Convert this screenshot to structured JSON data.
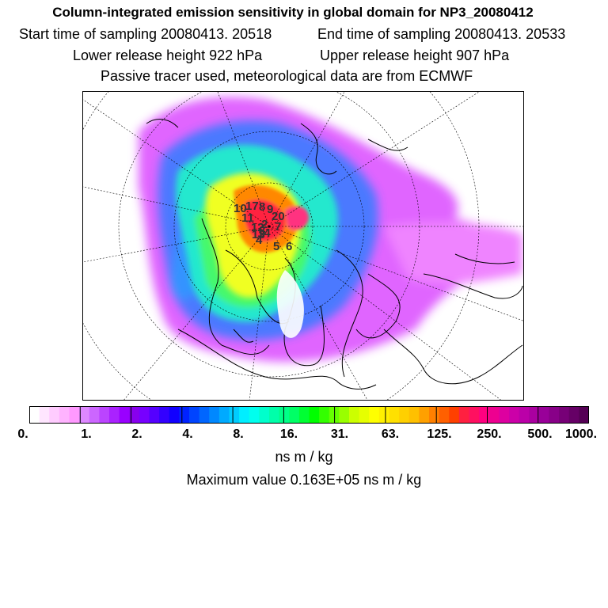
{
  "header": {
    "title": "Column-integrated emission sensitivity in global domain for NP3_20080412",
    "start_time": "Start time of sampling 20080413. 20518",
    "end_time": "End time of sampling 20080413. 20533",
    "lower_height": "Lower release height  922 hPa",
    "upper_height": "Upper release height  907 hPa",
    "tracer_note": "Passive tracer used, meteorological data are from ECMWF"
  },
  "map": {
    "projection": "polar stereographic (north pole)",
    "track_labels": [
      "10",
      "17",
      "8",
      "9",
      "20",
      "11",
      "12",
      "13",
      "14",
      "5",
      "4",
      "3",
      "2",
      "7",
      "6"
    ]
  },
  "colorbar": {
    "ticks": [
      "0.",
      "1.",
      "2.",
      "4.",
      "8.",
      "16.",
      "31.",
      "63.",
      "125.",
      "250.",
      "500.",
      "1000."
    ],
    "colors": [
      "#ffffff",
      "#ffe6ff",
      "#ffccff",
      "#ffb3ff",
      "#ff99ff",
      "#dd88ff",
      "#cc66ff",
      "#bb44ff",
      "#aa22ff",
      "#9900ff",
      "#8800ee",
      "#7700ff",
      "#5500ff",
      "#3300ff",
      "#1100ff",
      "#0022ff",
      "#0044ff",
      "#0066ff",
      "#0088ff",
      "#00aaff",
      "#00ccff",
      "#00eeff",
      "#00ffee",
      "#00ffcc",
      "#00ffaa",
      "#00ff88",
      "#00ff66",
      "#00ff33",
      "#00ff00",
      "#33ff00",
      "#66ff00",
      "#99ff00",
      "#ccff00",
      "#e6ff00",
      "#ffff00",
      "#fff000",
      "#ffe000",
      "#ffd000",
      "#ffc000",
      "#ffa000",
      "#ff8000",
      "#ff6000",
      "#ff4000",
      "#ff2040",
      "#ff1060",
      "#ff0080",
      "#ee0090",
      "#dd00a0",
      "#cc00a8",
      "#bb00a8",
      "#aa00a0",
      "#990099",
      "#880088",
      "#770077",
      "#660066",
      "#550055"
    ]
  },
  "units": "ns m / kg",
  "max_value": "Maximum value  0.163E+05 ns m / kg"
}
